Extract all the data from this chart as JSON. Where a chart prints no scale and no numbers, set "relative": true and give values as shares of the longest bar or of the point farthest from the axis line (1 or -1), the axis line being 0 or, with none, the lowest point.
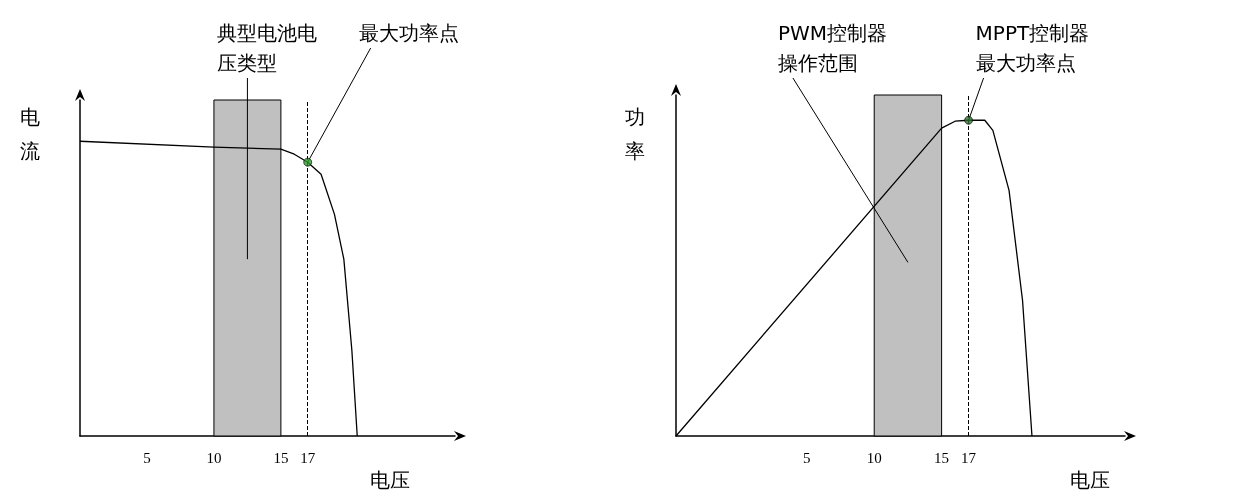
{
  "chart_data": [
    {
      "type": "line",
      "relative": true,
      "xlabel": "电压",
      "ylabel": "电流",
      "xlim": [
        0,
        28
      ],
      "xticks": [
        5,
        10,
        15,
        17
      ],
      "grid": false,
      "marker": "none",
      "series": [
        {
          "color": "#000000",
          "x": [
            0,
            10,
            15,
            16,
            17,
            18,
            19,
            19.7,
            20.3,
            20.7
          ],
          "values": [
            1,
            0.98,
            0.973,
            0.956,
            0.929,
            0.888,
            0.752,
            0.6,
            0.29,
            0
          ]
        },
        {
          "type": "scatter",
          "marker": "circle",
          "color": "#2e9e2e",
          "x": [
            17
          ],
          "values": [
            0.929
          ]
        }
      ],
      "bands": [
        {
          "axis": "x",
          "from": 10,
          "to": 15,
          "color": "#c0c0c0"
        }
      ],
      "ref_lines": [
        {
          "axis": "x",
          "value": 17,
          "line_style": "dashed",
          "color": "#000000"
        }
      ],
      "annotations": [
        "典型电池电压类型",
        {
          "text": "最大功率点",
          "x": 17,
          "y": 0.929
        }
      ]
    },
    {
      "type": "line",
      "relative": true,
      "xlabel": "电压",
      "ylabel": "功率",
      "xlim": [
        -4.7,
        28.6
      ],
      "xticks": [
        5,
        10,
        15,
        17
      ],
      "grid": false,
      "marker": "none",
      "series": [
        {
          "color": "#000000",
          "x": [
            -4.7,
            15,
            16,
            17,
            18.2,
            18.8,
            20,
            21,
            21.7
          ],
          "values": [
            0,
            0.975,
            0.997,
            1,
            1,
            0.968,
            0.778,
            0.43,
            0
          ]
        },
        {
          "type": "scatter",
          "marker": "circle",
          "color": "#2e6e2e",
          "x": [
            17
          ],
          "values": [
            1
          ]
        }
      ],
      "bands": [
        {
          "axis": "x",
          "from": 10,
          "to": 15,
          "color": "#c0c0c0"
        }
      ],
      "ref_lines": [
        {
          "axis": "x",
          "value": 17,
          "line_style": "dashed",
          "color": "#000000"
        }
      ],
      "annotations": [
        "PWM控制器操作范围",
        {
          "text": "MPPT控制器最大功率点",
          "x": 17,
          "y": 1
        }
      ]
    }
  ]
}
